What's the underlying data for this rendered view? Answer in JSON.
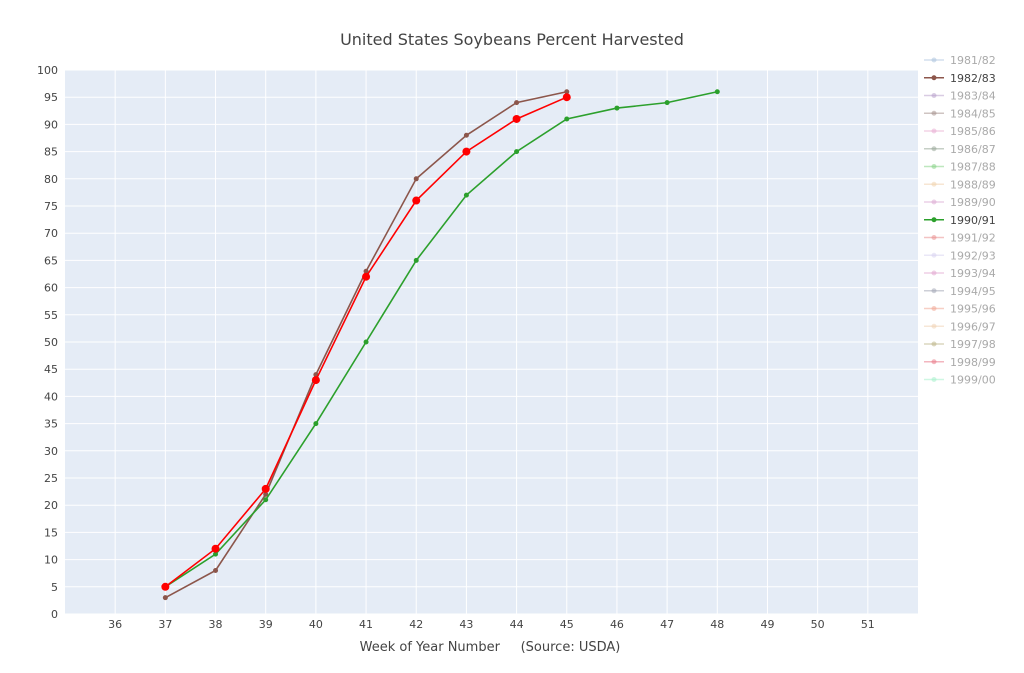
{
  "chart_data": {
    "type": "line",
    "title": "United States Soybeans Percent Harvested",
    "xlabel": "Week of Year Number     (Source: USDA)",
    "ylabel": "",
    "xlim": [
      35,
      52
    ],
    "ylim": [
      0,
      100
    ],
    "x_ticks": [
      36,
      37,
      38,
      39,
      40,
      41,
      42,
      43,
      44,
      45,
      46,
      47,
      48,
      49,
      50,
      51
    ],
    "y_ticks": [
      0,
      5,
      10,
      15,
      20,
      25,
      30,
      35,
      40,
      45,
      50,
      55,
      60,
      65,
      70,
      75,
      80,
      85,
      90,
      95,
      100
    ],
    "grid": true,
    "legend_placement": "right",
    "plot_bg": "#e5ecf6",
    "series": [
      {
        "name": "1981/82",
        "color": "#a6c0dc",
        "visible": false,
        "x": [],
        "y": []
      },
      {
        "name": "1982/83",
        "color": "#8c564b",
        "visible": true,
        "marker_size": 2.5,
        "x": [
          37,
          38,
          39,
          40,
          41,
          42,
          43,
          44,
          45
        ],
        "y": [
          3,
          8,
          22,
          44,
          63,
          80,
          88,
          94,
          96
        ]
      },
      {
        "name": "1983/84",
        "color": "#b49ac8",
        "visible": false,
        "x": [],
        "y": []
      },
      {
        "name": "1984/85",
        "color": "#a08a86",
        "visible": false,
        "x": [],
        "y": []
      },
      {
        "name": "1985/86",
        "color": "#e8a6cf",
        "visible": false,
        "x": [],
        "y": []
      },
      {
        "name": "1986/87",
        "color": "#8fa08f",
        "visible": false,
        "x": [],
        "y": []
      },
      {
        "name": "1987/88",
        "color": "#7fd07f",
        "visible": false,
        "x": [],
        "y": []
      },
      {
        "name": "1988/89",
        "color": "#f0cfa8",
        "visible": false,
        "x": [],
        "y": []
      },
      {
        "name": "1989/90",
        "color": "#d9a3d0",
        "visible": false,
        "x": [],
        "y": []
      },
      {
        "name": "1990/91",
        "color": "#2ca02c",
        "visible": true,
        "marker_size": 2.5,
        "x": [
          37,
          38,
          39,
          40,
          41,
          42,
          43,
          44,
          45,
          46,
          47,
          48
        ],
        "y": [
          5,
          11,
          21,
          35,
          50,
          65,
          77,
          85,
          91,
          93,
          94,
          96
        ]
      },
      {
        "name": "1991/92",
        "color": "#e88888",
        "visible": false,
        "x": [],
        "y": []
      },
      {
        "name": "1992/93",
        "color": "#d6d0f0",
        "visible": false,
        "x": [],
        "y": []
      },
      {
        "name": "1993/94",
        "color": "#e0a0cc",
        "visible": false,
        "x": [],
        "y": []
      },
      {
        "name": "1994/95",
        "color": "#9ca0b0",
        "visible": false,
        "x": [],
        "y": []
      },
      {
        "name": "1995/96",
        "color": "#f0a08c",
        "visible": false,
        "x": [],
        "y": []
      },
      {
        "name": "1996/97",
        "color": "#f0d0b0",
        "visible": false,
        "x": [],
        "y": []
      },
      {
        "name": "1997/98",
        "color": "#b8b080",
        "visible": false,
        "x": [],
        "y": []
      },
      {
        "name": "1998/99",
        "color": "#e87080",
        "visible": false,
        "x": [],
        "y": []
      },
      {
        "name": "1999/00",
        "color": "#a0f0c8",
        "visible": false,
        "x": [],
        "y": []
      },
      {
        "name": "",
        "color": "#ff0000",
        "visible": true,
        "marker_size": 4,
        "x": [
          37,
          38,
          39,
          40,
          41,
          42,
          43,
          44,
          45
        ],
        "y": [
          5,
          12,
          23,
          43,
          62,
          76,
          85,
          91,
          95
        ]
      }
    ]
  }
}
